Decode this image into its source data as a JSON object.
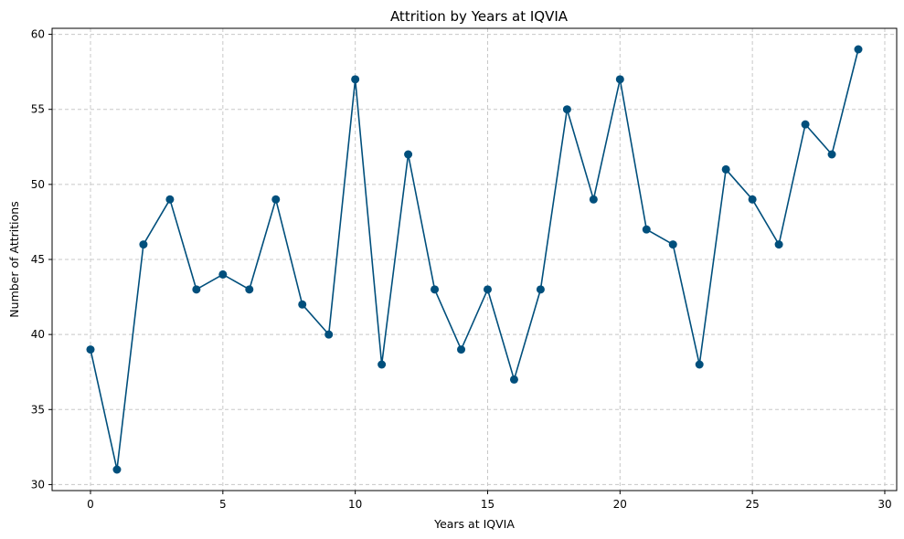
{
  "chart_data": {
    "type": "line",
    "title": "Attrition by Years at IQVIA",
    "xlabel": "Years at IQVIA",
    "ylabel": "Number of Attritions",
    "xlim": [
      -1.45,
      30.45
    ],
    "ylim": [
      29.6,
      60.4
    ],
    "xticks": [
      0,
      5,
      10,
      15,
      20,
      25,
      30
    ],
    "yticks": [
      30,
      35,
      40,
      45,
      50,
      55,
      60
    ],
    "grid": true,
    "marker": "circle",
    "color": "#004f7c",
    "series": [
      {
        "x": [
          0,
          1,
          2,
          3,
          4,
          5,
          6,
          7,
          8,
          9,
          10,
          11,
          12,
          13,
          14,
          15,
          16,
          17,
          18,
          19,
          20,
          21,
          22,
          23,
          24,
          25,
          26,
          27,
          28,
          29
        ],
        "y": [
          39,
          31,
          46,
          49,
          43,
          44,
          43,
          49,
          42,
          40,
          57,
          38,
          52,
          43,
          39,
          43,
          37,
          43,
          55,
          49,
          57,
          47,
          46,
          38,
          51,
          49,
          46,
          54,
          52,
          59
        ]
      }
    ]
  }
}
